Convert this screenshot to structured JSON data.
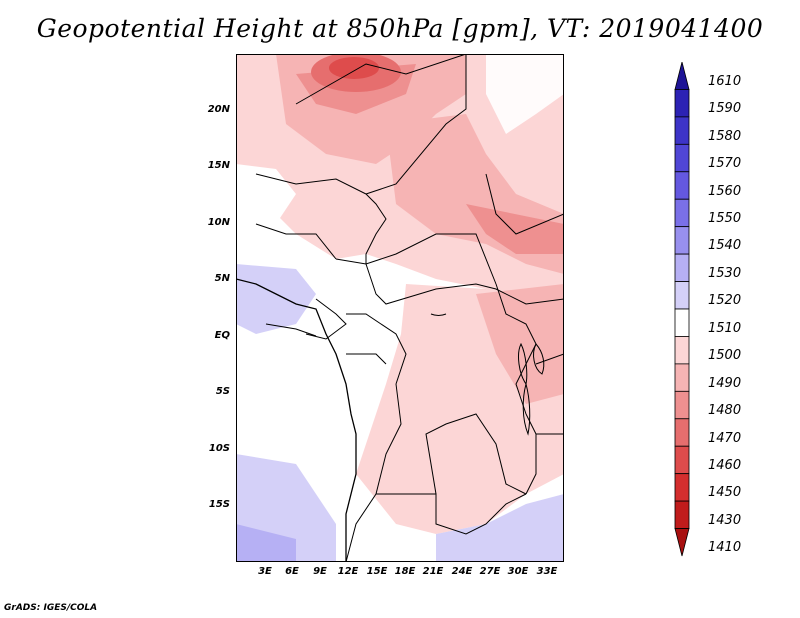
{
  "title": "Geopotential Height at 850hPa [gpm], VT: 2019041400",
  "footer": "GrADS: IGES/COLA",
  "map": {
    "region": "Central Africa",
    "lat_labels": [
      "20N",
      "15N",
      "10N",
      "5N",
      "EQ",
      "5S",
      "10S",
      "15S"
    ],
    "lon_labels": [
      "3E",
      "6E",
      "9E",
      "12E",
      "15E",
      "18E",
      "21E",
      "24E",
      "27E",
      "30E",
      "33E"
    ]
  },
  "colorbar": {
    "unit": "gpm",
    "levels": [
      "1610",
      "1590",
      "1580",
      "1570",
      "1560",
      "1550",
      "1540",
      "1530",
      "1520",
      "1510",
      "1500",
      "1490",
      "1480",
      "1470",
      "1460",
      "1450",
      "1430",
      "1410"
    ],
    "colors": [
      "#1e1496",
      "#2c22b4",
      "#3d34c8",
      "#5046d6",
      "#6458e0",
      "#7a70e8",
      "#9890ee",
      "#b6b0f4",
      "#d4d0f8",
      "#ffffff",
      "#fcd6d6",
      "#f6b4b4",
      "#ee9090",
      "#e66e6e",
      "#de4c4c",
      "#d42e2e",
      "#c01c1c",
      "#a81010"
    ],
    "highlight_colors": {
      "low_red": "#c01c1c",
      "high_blue": "#1e1496"
    }
  }
}
